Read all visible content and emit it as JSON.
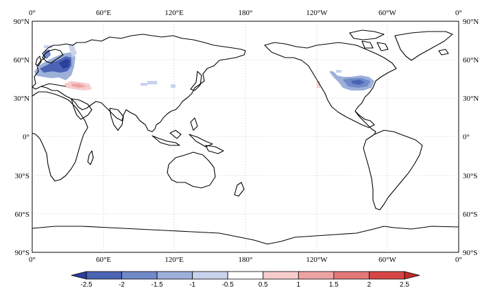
{
  "axes": {
    "top": [
      "0°",
      "60°E",
      "120°E",
      "180°",
      "120°W",
      "60°W",
      "0°"
    ],
    "bottom": [
      "0°",
      "60°E",
      "120°E",
      "180°",
      "120°W",
      "60°W",
      "0°"
    ],
    "left": [
      "90°N",
      "60°N",
      "30°N",
      "0°",
      "30°S",
      "60°S",
      "90°S"
    ],
    "right": [
      "90°N",
      "60°N",
      "30°N",
      "0°",
      "30°S",
      "60°S",
      "90°S"
    ]
  },
  "colorbar": {
    "labels": [
      "-2.5",
      "-2",
      "-1.5",
      "-1",
      "-0.5",
      "0.5",
      "1",
      "1.5",
      "2",
      "2.5"
    ],
    "colors": [
      "#2b3f9c",
      "#4a63b4",
      "#7089c8",
      "#9db0da",
      "#c8d2ec",
      "#ffffff",
      "#f6cccc",
      "#eea3a3",
      "#e37878",
      "#d64545",
      "#c42a2a"
    ]
  }
}
